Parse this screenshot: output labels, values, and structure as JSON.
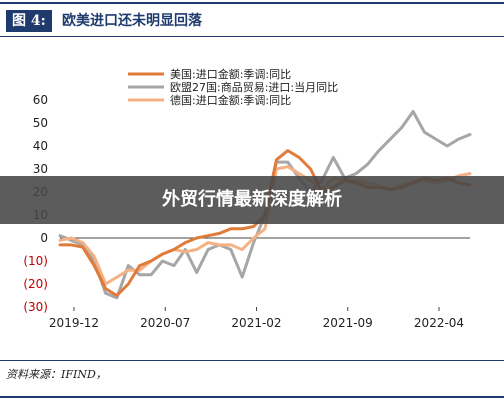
{
  "figure": {
    "label": "图 4:",
    "title": "欧美进口还未明显回落",
    "source": "资料来源：IFIND，"
  },
  "overlay": {
    "banner_text": "外贸行情最新深度解析"
  },
  "chart_data": {
    "type": "line",
    "x_labels": [
      "2019-12",
      "2020-07",
      "2021-02",
      "2021-09",
      "2022-04"
    ],
    "y_ticks": [
      "60",
      "50",
      "40",
      "30",
      "20",
      "10",
      "0",
      "(10)",
      "(20)",
      "(30)"
    ],
    "ylim": [
      -30,
      60
    ],
    "negative_tick_color": "#c00000",
    "series": [
      {
        "name": "美国:进口金额:季调:同比",
        "color": "#e07b39",
        "values": [
          -3,
          -3,
          -4,
          -12,
          -22,
          -25,
          -20,
          -12,
          -10,
          -7,
          -5,
          -2,
          0,
          1,
          2,
          4,
          4,
          5,
          10,
          34,
          38,
          35,
          30,
          20,
          22,
          25,
          24,
          22,
          22,
          21,
          22,
          24,
          26,
          25,
          26,
          24,
          23
        ]
      },
      {
        "name": "欧盟27国:商品贸易:进口:当月同比",
        "color": "#a6a6a6",
        "values": [
          1,
          -1,
          -3,
          -10,
          -24,
          -26,
          -12,
          -16,
          -16,
          -10,
          -12,
          -5,
          -15,
          -5,
          -3,
          -5,
          -17,
          -2,
          10,
          33,
          33,
          26,
          20,
          25,
          35,
          26,
          28,
          32,
          38,
          43,
          48,
          55,
          46,
          43,
          40,
          43,
          45
        ]
      },
      {
        "name": "德国:进口金额:季调:同比",
        "color": "#f4b183",
        "values": [
          -1,
          0,
          -2,
          -8,
          -20,
          -17,
          -14,
          -14,
          -10,
          -7,
          -5,
          -6,
          -5,
          -2,
          -3,
          -3,
          -5,
          0,
          4,
          30,
          31,
          28,
          25,
          21,
          26,
          25,
          25,
          24,
          23,
          21,
          23,
          24,
          25,
          24,
          25,
          27,
          28
        ]
      }
    ]
  }
}
